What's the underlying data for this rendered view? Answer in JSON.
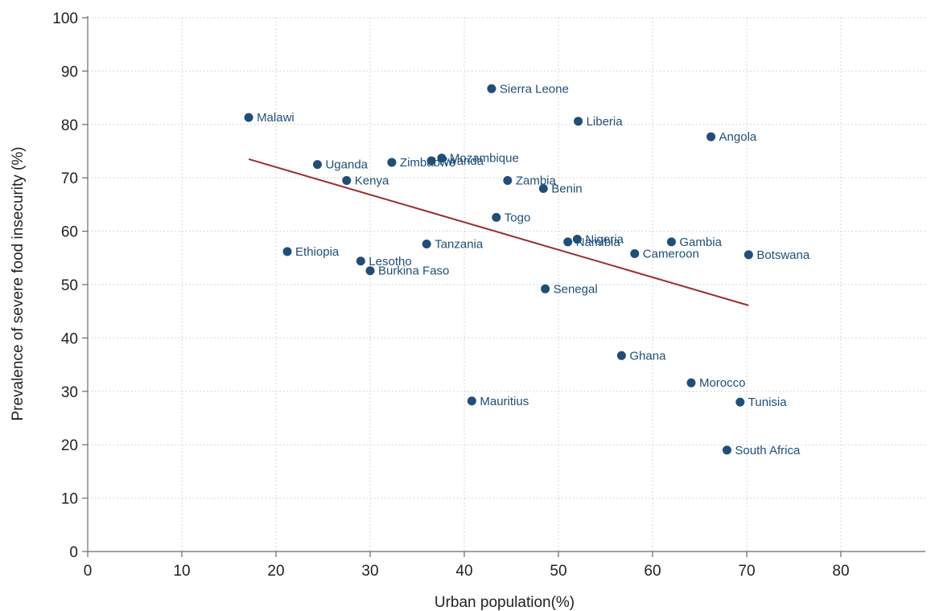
{
  "chart_data": {
    "type": "scatter",
    "title": "",
    "xlabel": "Urban population(%)",
    "ylabel": "Prevalence of severe food insecurity (%)",
    "xlim": [
      0,
      90
    ],
    "ylim": [
      0,
      100
    ],
    "xticks": [
      0,
      10,
      20,
      30,
      40,
      50,
      60,
      70,
      80
    ],
    "yticks": [
      0,
      10,
      20,
      30,
      40,
      50,
      60,
      70,
      80,
      90,
      100
    ],
    "grid": true,
    "legend": "none",
    "colors": {
      "points": "#1f4e79",
      "fit_line": "#9b2f2f",
      "grid": "#c9c9c9",
      "axis": "#6b6b6b"
    },
    "points": [
      {
        "label": "Malawi",
        "x": 17.1,
        "y": 81.3
      },
      {
        "label": "Sierra Leone",
        "x": 42.9,
        "y": 86.7
      },
      {
        "label": "Liberia",
        "x": 52.1,
        "y": 80.6
      },
      {
        "label": "Angola",
        "x": 66.2,
        "y": 77.7
      },
      {
        "label": "Uganda",
        "x": 24.4,
        "y": 72.5
      },
      {
        "label": "Zimbabwe",
        "x": 32.3,
        "y": 72.9
      },
      {
        "label": "Rwanda",
        "x": 36.5,
        "y": 73.2
      },
      {
        "label": "Mozambique",
        "x": 37.6,
        "y": 73.7
      },
      {
        "label": "Kenya",
        "x": 27.5,
        "y": 69.5
      },
      {
        "label": "Zambia",
        "x": 44.6,
        "y": 69.5
      },
      {
        "label": "Benin",
        "x": 48.4,
        "y": 68.0
      },
      {
        "label": "Togo",
        "x": 43.4,
        "y": 62.6
      },
      {
        "label": "Nigeria",
        "x": 52.0,
        "y": 58.5
      },
      {
        "label": "Namibia",
        "x": 51.0,
        "y": 58.0
      },
      {
        "label": "Gambia",
        "x": 62.0,
        "y": 58.0
      },
      {
        "label": "Tanzania",
        "x": 36.0,
        "y": 57.6
      },
      {
        "label": "Ethiopia",
        "x": 21.2,
        "y": 56.2
      },
      {
        "label": "Cameroon",
        "x": 58.1,
        "y": 55.8
      },
      {
        "label": "Botswana",
        "x": 70.2,
        "y": 55.6
      },
      {
        "label": "Lesotho",
        "x": 29.0,
        "y": 54.4
      },
      {
        "label": "Burkina Faso",
        "x": 30.0,
        "y": 52.6
      },
      {
        "label": "Senegal",
        "x": 48.6,
        "y": 49.2
      },
      {
        "label": "Ghana",
        "x": 56.7,
        "y": 36.7
      },
      {
        "label": "Morocco",
        "x": 64.1,
        "y": 31.6
      },
      {
        "label": "Mauritius",
        "x": 40.8,
        "y": 28.2
      },
      {
        "label": "Tunisia",
        "x": 69.3,
        "y": 28.0
      },
      {
        "label": "South Africa",
        "x": 67.9,
        "y": 19.0
      }
    ],
    "fit_line": {
      "x": [
        17.1,
        70.2
      ],
      "y": [
        73.5,
        46.1
      ]
    }
  }
}
